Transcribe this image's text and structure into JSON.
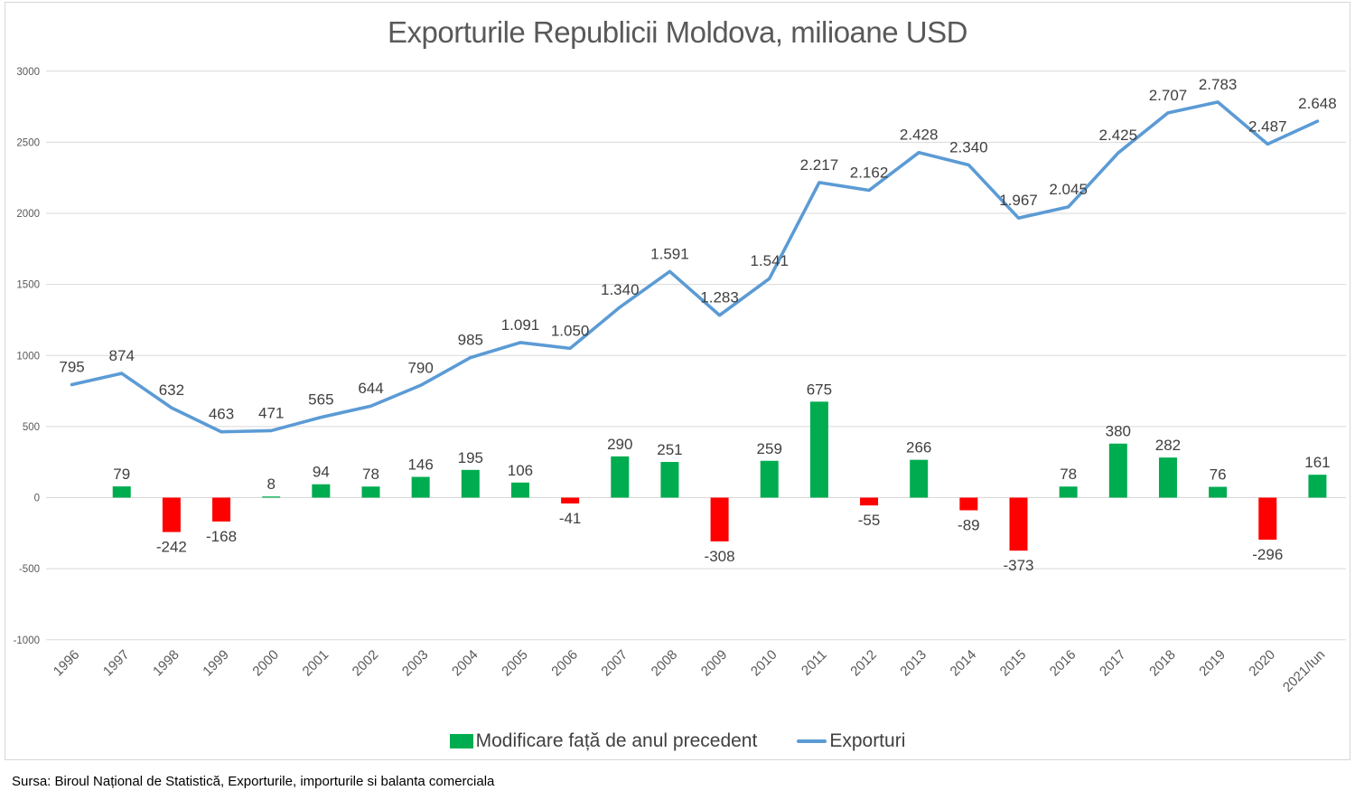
{
  "title": "Exporturile Republicii Moldova, milioane USD",
  "source": "Sursa: Biroul Național de Statistică, Exporturile, importurile si balanta comerciala",
  "legend": {
    "bars_label": "Modificare față de anul precedent",
    "line_label": "Exporturi"
  },
  "colors": {
    "line": "#5B9BD5",
    "bar_positive": "#00AC50",
    "bar_negative": "#FF0000",
    "grid": "#D9D9D9",
    "axis_text": "#595959",
    "data_label": "#404040",
    "title_text": "#595959",
    "frame_border": "#D7D7D7"
  },
  "chart_data": {
    "type": "combo",
    "title": "Exporturile Republicii Moldova, milioane USD",
    "xlabel": "",
    "ylabel": "",
    "ylim": [
      -1000,
      3000
    ],
    "grid": true,
    "legend_position": "bottom",
    "categories": [
      "1996",
      "1997",
      "1998",
      "1999",
      "2000",
      "2001",
      "2002",
      "2003",
      "2004",
      "2005",
      "2006",
      "2007",
      "2008",
      "2009",
      "2010",
      "2011",
      "2012",
      "2013",
      "2014",
      "2015",
      "2016",
      "2017",
      "2018",
      "2019",
      "2020",
      "2021/Iun"
    ],
    "yticks": [
      3000,
      2500,
      2000,
      1500,
      1000,
      500,
      0,
      -500,
      -1000
    ],
    "ytick_labels": [
      "3000",
      "2500",
      "2000",
      "1500",
      "1000",
      "500",
      "0",
      "-500",
      "-1000"
    ],
    "series": [
      {
        "name": "Modificare față de anul precedent",
        "type": "bar",
        "values": [
          null,
          79,
          -242,
          -168,
          8,
          94,
          78,
          146,
          195,
          106,
          -41,
          290,
          251,
          -308,
          259,
          675,
          -55,
          266,
          -89,
          -373,
          78,
          380,
          282,
          76,
          -296,
          161
        ],
        "labels": [
          "",
          "79",
          "-242",
          "-168",
          "8",
          "94",
          "78",
          "146",
          "195",
          "106",
          "-41",
          "290",
          "251",
          "-308",
          "259",
          "675",
          "-55",
          "266",
          "-89",
          "-373",
          "78",
          "380",
          "282",
          "76",
          "-296",
          "161"
        ]
      },
      {
        "name": "Exporturi",
        "type": "line",
        "values": [
          795,
          874,
          632,
          463,
          471,
          565,
          644,
          790,
          985,
          1091,
          1050,
          1340,
          1591,
          1283,
          1541,
          2217,
          2162,
          2428,
          2340,
          1967,
          2045,
          2425,
          2707,
          2783,
          2487,
          2648
        ],
        "labels": [
          "795",
          "874",
          "632",
          "463",
          "471",
          "565",
          "644",
          "790",
          "985",
          "1.091",
          "1.050",
          "1.340",
          "1.591",
          "1.283",
          "1.541",
          "2.217",
          "2.162",
          "2.428",
          "2.340",
          "1.967",
          "2.045",
          "2.425",
          "2.707",
          "2.783",
          "2.487",
          "2.648"
        ]
      }
    ]
  }
}
